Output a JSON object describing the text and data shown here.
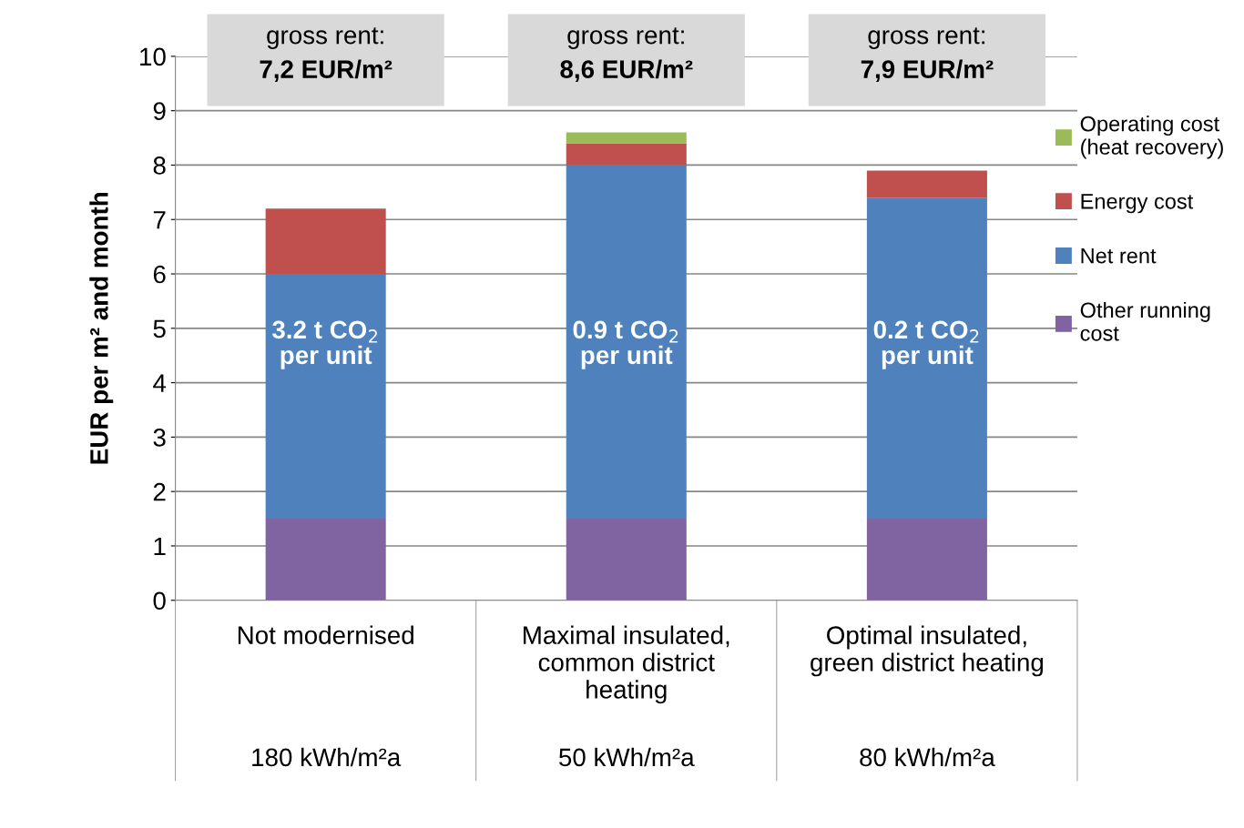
{
  "chart_data": {
    "type": "bar",
    "stacked": true,
    "ylabel": "EUR per m² and month",
    "categories": [
      "Not modernised",
      "Maximal insulated,\ncommon district\nheating",
      "Optimal insulated,\ngreen district heating"
    ],
    "series": [
      {
        "name": "Other running\ncost",
        "color": "#8064a2",
        "values": [
          1.5,
          1.5,
          1.5
        ]
      },
      {
        "name": "Net rent",
        "color": "#4f81bd",
        "values": [
          4.5,
          6.5,
          5.9
        ]
      },
      {
        "name": "Energy cost",
        "color": "#c0504d",
        "values": [
          1.2,
          0.4,
          0.5
        ]
      },
      {
        "name": "Operating cost\n(heat recovery)",
        "color": "#9bbb59",
        "values": [
          0,
          0.2,
          0
        ]
      }
    ],
    "ylim": [
      0,
      10
    ],
    "yticks": [
      0,
      1,
      2,
      3,
      4,
      5,
      6,
      7,
      8,
      9,
      10
    ],
    "grid": "y",
    "legend": "right",
    "annotations": [
      "gross rent:\n7,2 EUR/m²",
      "gross rent:\n8,6 EUR/m²",
      "gross rent:\n7,9 EUR/m²",
      "3.2 t CO$_{2}$\nper unit",
      "0.9 t CO$_{2}$\nper unit",
      "0.2 t CO$_{2}$\nper unit",
      "180 kWh/m²a",
      "50 kWh/m²a",
      "80 kWh/m²a"
    ]
  }
}
